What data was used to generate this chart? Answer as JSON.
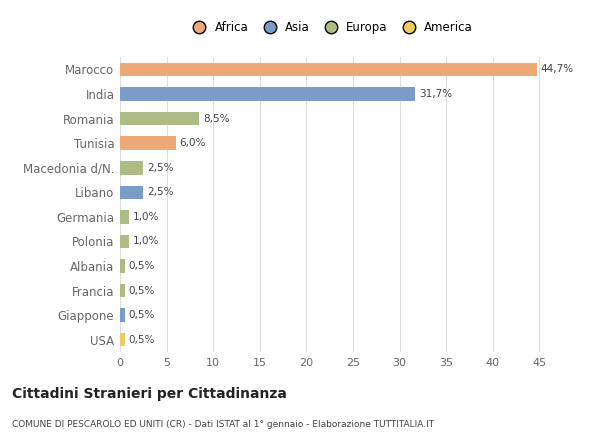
{
  "categories": [
    "Marocco",
    "India",
    "Romania",
    "Tunisia",
    "Macedonia d/N.",
    "Libano",
    "Germania",
    "Polonia",
    "Albania",
    "Francia",
    "Giappone",
    "USA"
  ],
  "values": [
    44.7,
    31.7,
    8.5,
    6.0,
    2.5,
    2.5,
    1.0,
    1.0,
    0.5,
    0.5,
    0.5,
    0.5
  ],
  "labels": [
    "44,7%",
    "31,7%",
    "8,5%",
    "6,0%",
    "2,5%",
    "2,5%",
    "1,0%",
    "1,0%",
    "0,5%",
    "0,5%",
    "0,5%",
    "0,5%"
  ],
  "colors": [
    "#EDAA78",
    "#7B9CC8",
    "#AEBB84",
    "#EDAA78",
    "#AEBB84",
    "#7B9CC8",
    "#AEBB84",
    "#AEBB84",
    "#AEBB84",
    "#AEBB84",
    "#7B9CC8",
    "#F0CC60"
  ],
  "legend_labels": [
    "Africa",
    "Asia",
    "Europa",
    "America"
  ],
  "legend_colors": [
    "#EDAA78",
    "#7B9CC8",
    "#AEBB84",
    "#F0CC60"
  ],
  "title": "Cittadini Stranieri per Cittadinanza",
  "subtitle": "COMUNE DI PESCAROLO ED UNITI (CR) - Dati ISTAT al 1° gennaio - Elaborazione TUTTITALIA.IT",
  "xlim": [
    0,
    47
  ],
  "xticks": [
    0,
    5,
    10,
    15,
    20,
    25,
    30,
    35,
    40,
    45
  ],
  "background_color": "#ffffff",
  "grid_color": "#dddddd",
  "bar_height": 0.55,
  "text_color": "#666666",
  "label_color": "#444444"
}
